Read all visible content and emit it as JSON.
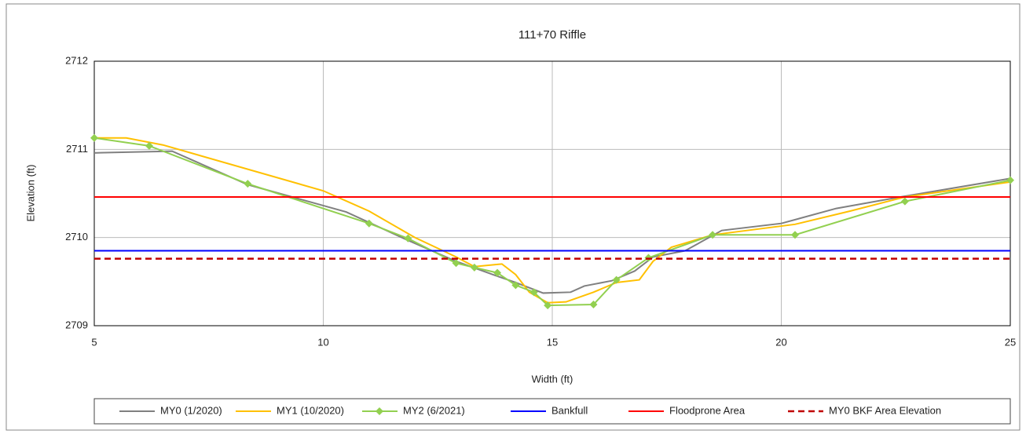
{
  "chart_data": {
    "type": "line",
    "title": "111+70 Riffle",
    "x_label": "Width (ft)",
    "y_label": "Elevation (ft)",
    "xlim": [
      5,
      25
    ],
    "ylim": [
      2709,
      2712
    ],
    "xticks": [
      5,
      10,
      15,
      20,
      25
    ],
    "yticks": [
      2709,
      2710,
      2711,
      2712
    ],
    "grid": true,
    "legend": "bottom",
    "series": [
      {
        "name": "MY0 (1/2020)",
        "color": "#808080",
        "x": [
          5,
          6.7,
          8.35,
          10.5,
          11.8,
          12.9,
          13.7,
          14.2,
          14.8,
          15.4,
          15.7,
          16.3,
          16.8,
          17.2,
          17.9,
          18.7,
          20.0,
          21.2,
          22.6,
          25
        ],
        "values": [
          2710.96,
          2710.98,
          2710.6,
          2710.29,
          2709.98,
          2709.73,
          2709.58,
          2709.49,
          2709.37,
          2709.38,
          2709.45,
          2709.51,
          2709.62,
          2709.78,
          2709.85,
          2710.08,
          2710.16,
          2710.33,
          2710.46,
          2710.67
        ]
      },
      {
        "name": "MY1 (10/2020)",
        "color": "#ffc000",
        "x": [
          5,
          5.7,
          6.5,
          10,
          11,
          12,
          12.9,
          13.3,
          13.9,
          14.2,
          14.5,
          14.9,
          15.3,
          15.9,
          16.4,
          16.9,
          17.2,
          17.6,
          18.5,
          20.3,
          21.5,
          22.7,
          25
        ],
        "values": [
          2711.13,
          2711.13,
          2711.05,
          2710.53,
          2710.3,
          2710.0,
          2709.78,
          2709.67,
          2709.7,
          2709.58,
          2709.38,
          2709.26,
          2709.27,
          2709.38,
          2709.49,
          2709.52,
          2709.73,
          2709.89,
          2710.03,
          2710.15,
          2710.3,
          2710.46,
          2710.63
        ]
      },
      {
        "name": "MY2 (6/2021)",
        "color": "#92d050",
        "marker": "diamond",
        "x": [
          5,
          6.2,
          8.35,
          11,
          11.85,
          12.9,
          13.3,
          13.8,
          14.2,
          14.6,
          14.9,
          15.9,
          16.4,
          17.1,
          18.5,
          20.3,
          22.7,
          25
        ],
        "values": [
          2711.13,
          2711.04,
          2710.61,
          2710.16,
          2709.99,
          2709.71,
          2709.66,
          2709.6,
          2709.46,
          2709.38,
          2709.23,
          2709.24,
          2709.52,
          2709.77,
          2710.03,
          2710.03,
          2710.41,
          2710.65
        ]
      },
      {
        "name": "Bankfull",
        "color": "#0000ff",
        "x": [
          5,
          25
        ],
        "values": [
          2709.85,
          2709.85
        ]
      },
      {
        "name": "Floodprone Area",
        "color": "#ff0000",
        "x": [
          5,
          25
        ],
        "values": [
          2710.46,
          2710.46
        ]
      },
      {
        "name": "MY0 BKF Area Elevation",
        "color": "#c00000",
        "dash": true,
        "x": [
          5,
          25
        ],
        "values": [
          2709.76,
          2709.76
        ]
      }
    ]
  }
}
